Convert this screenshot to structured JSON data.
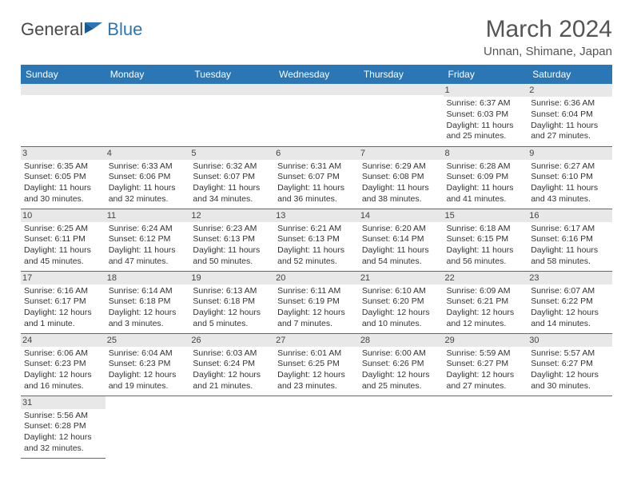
{
  "logo": {
    "general": "General",
    "blue": "Blue"
  },
  "title": "March 2024",
  "location": "Unnan, Shimane, Japan",
  "headers": [
    "Sunday",
    "Monday",
    "Tuesday",
    "Wednesday",
    "Thursday",
    "Friday",
    "Saturday"
  ],
  "header_bg": "#2b77b5",
  "daynum_bg": "#e8e8e8",
  "weeks": [
    [
      null,
      null,
      null,
      null,
      null,
      {
        "n": "1",
        "sr": "6:37 AM",
        "ss": "6:03 PM",
        "dl": "11 hours and 25 minutes."
      },
      {
        "n": "2",
        "sr": "6:36 AM",
        "ss": "6:04 PM",
        "dl": "11 hours and 27 minutes."
      }
    ],
    [
      {
        "n": "3",
        "sr": "6:35 AM",
        "ss": "6:05 PM",
        "dl": "11 hours and 30 minutes."
      },
      {
        "n": "4",
        "sr": "6:33 AM",
        "ss": "6:06 PM",
        "dl": "11 hours and 32 minutes."
      },
      {
        "n": "5",
        "sr": "6:32 AM",
        "ss": "6:07 PM",
        "dl": "11 hours and 34 minutes."
      },
      {
        "n": "6",
        "sr": "6:31 AM",
        "ss": "6:07 PM",
        "dl": "11 hours and 36 minutes."
      },
      {
        "n": "7",
        "sr": "6:29 AM",
        "ss": "6:08 PM",
        "dl": "11 hours and 38 minutes."
      },
      {
        "n": "8",
        "sr": "6:28 AM",
        "ss": "6:09 PM",
        "dl": "11 hours and 41 minutes."
      },
      {
        "n": "9",
        "sr": "6:27 AM",
        "ss": "6:10 PM",
        "dl": "11 hours and 43 minutes."
      }
    ],
    [
      {
        "n": "10",
        "sr": "6:25 AM",
        "ss": "6:11 PM",
        "dl": "11 hours and 45 minutes."
      },
      {
        "n": "11",
        "sr": "6:24 AM",
        "ss": "6:12 PM",
        "dl": "11 hours and 47 minutes."
      },
      {
        "n": "12",
        "sr": "6:23 AM",
        "ss": "6:13 PM",
        "dl": "11 hours and 50 minutes."
      },
      {
        "n": "13",
        "sr": "6:21 AM",
        "ss": "6:13 PM",
        "dl": "11 hours and 52 minutes."
      },
      {
        "n": "14",
        "sr": "6:20 AM",
        "ss": "6:14 PM",
        "dl": "11 hours and 54 minutes."
      },
      {
        "n": "15",
        "sr": "6:18 AM",
        "ss": "6:15 PM",
        "dl": "11 hours and 56 minutes."
      },
      {
        "n": "16",
        "sr": "6:17 AM",
        "ss": "6:16 PM",
        "dl": "11 hours and 58 minutes."
      }
    ],
    [
      {
        "n": "17",
        "sr": "6:16 AM",
        "ss": "6:17 PM",
        "dl": "12 hours and 1 minute."
      },
      {
        "n": "18",
        "sr": "6:14 AM",
        "ss": "6:18 PM",
        "dl": "12 hours and 3 minutes."
      },
      {
        "n": "19",
        "sr": "6:13 AM",
        "ss": "6:18 PM",
        "dl": "12 hours and 5 minutes."
      },
      {
        "n": "20",
        "sr": "6:11 AM",
        "ss": "6:19 PM",
        "dl": "12 hours and 7 minutes."
      },
      {
        "n": "21",
        "sr": "6:10 AM",
        "ss": "6:20 PM",
        "dl": "12 hours and 10 minutes."
      },
      {
        "n": "22",
        "sr": "6:09 AM",
        "ss": "6:21 PM",
        "dl": "12 hours and 12 minutes."
      },
      {
        "n": "23",
        "sr": "6:07 AM",
        "ss": "6:22 PM",
        "dl": "12 hours and 14 minutes."
      }
    ],
    [
      {
        "n": "24",
        "sr": "6:06 AM",
        "ss": "6:23 PM",
        "dl": "12 hours and 16 minutes."
      },
      {
        "n": "25",
        "sr": "6:04 AM",
        "ss": "6:23 PM",
        "dl": "12 hours and 19 minutes."
      },
      {
        "n": "26",
        "sr": "6:03 AM",
        "ss": "6:24 PM",
        "dl": "12 hours and 21 minutes."
      },
      {
        "n": "27",
        "sr": "6:01 AM",
        "ss": "6:25 PM",
        "dl": "12 hours and 23 minutes."
      },
      {
        "n": "28",
        "sr": "6:00 AM",
        "ss": "6:26 PM",
        "dl": "12 hours and 25 minutes."
      },
      {
        "n": "29",
        "sr": "5:59 AM",
        "ss": "6:27 PM",
        "dl": "12 hours and 27 minutes."
      },
      {
        "n": "30",
        "sr": "5:57 AM",
        "ss": "6:27 PM",
        "dl": "12 hours and 30 minutes."
      }
    ],
    [
      {
        "n": "31",
        "sr": "5:56 AM",
        "ss": "6:28 PM",
        "dl": "12 hours and 32 minutes."
      },
      null,
      null,
      null,
      null,
      null,
      null
    ]
  ],
  "labels": {
    "sunrise": "Sunrise: ",
    "sunset": "Sunset: ",
    "daylight": "Daylight: "
  }
}
